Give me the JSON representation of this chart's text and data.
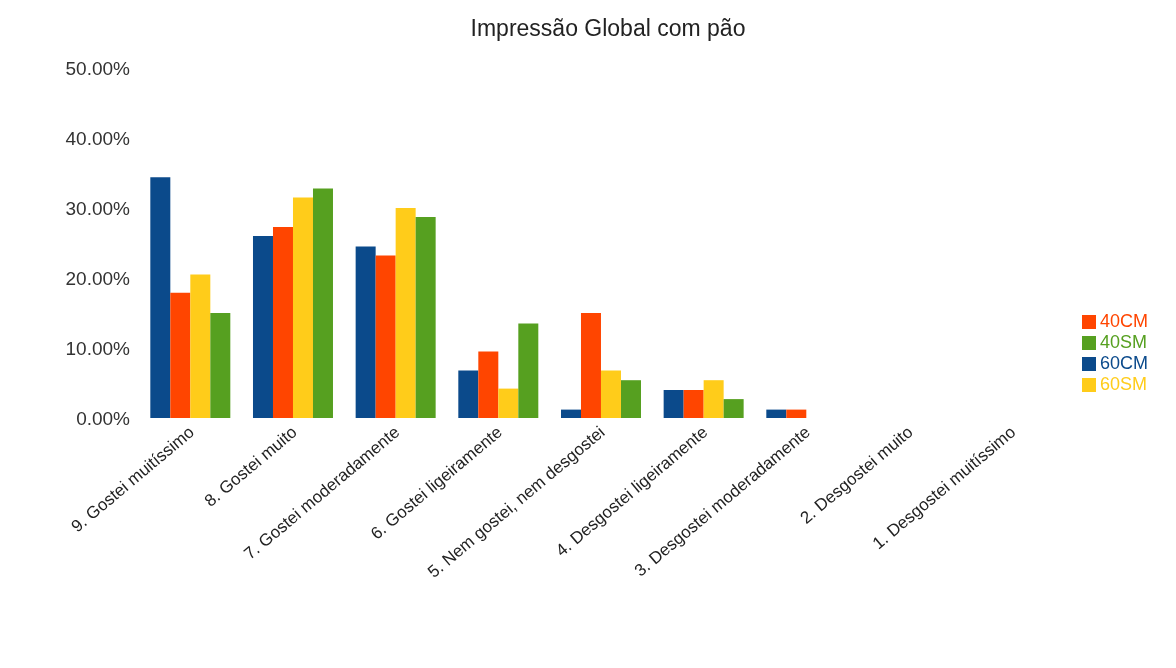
{
  "chart_data": {
    "type": "bar",
    "title": "Impressão Global com pão",
    "categories": [
      "9. Gostei muitíssimo",
      "8. Gostei muito",
      "7. Gostei moderadamente",
      "6. Gostei ligeiramente",
      "5. Nem gostei, nem desgostei",
      "4. Desgostei ligeiramente",
      "3. Desgostei moderadamente",
      "2. Desgostei muito",
      "1. Desgostei muitíssimo"
    ],
    "series": [
      {
        "name": "60CM",
        "color": "#0b4a8b",
        "values": [
          34.4,
          26.0,
          24.5,
          6.8,
          1.2,
          4.0,
          1.2,
          0,
          0
        ]
      },
      {
        "name": "40CM",
        "color": "#ff4500",
        "values": [
          17.9,
          27.3,
          23.2,
          9.5,
          15.0,
          4.0,
          1.2,
          0,
          0
        ]
      },
      {
        "name": "60SM",
        "color": "#ffcc1a",
        "values": [
          20.5,
          31.5,
          30.0,
          4.2,
          6.8,
          5.4,
          0,
          0,
          0
        ]
      },
      {
        "name": "40SM",
        "color": "#56a020",
        "values": [
          15.0,
          32.8,
          28.7,
          13.5,
          5.4,
          2.7,
          0,
          0,
          0
        ]
      }
    ],
    "ylim": [
      0,
      50
    ],
    "yticks": [
      {
        "value": 0,
        "label": "0.00%"
      },
      {
        "value": 10,
        "label": "10.00%"
      },
      {
        "value": 20,
        "label": "20.00%"
      },
      {
        "value": 30,
        "label": "30.00%"
      },
      {
        "value": 40,
        "label": "40.00%"
      },
      {
        "value": 50,
        "label": "50.00%"
      }
    ],
    "grid": false,
    "legend": "right"
  }
}
